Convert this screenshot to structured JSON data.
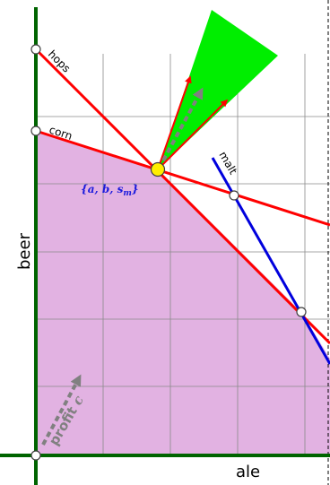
{
  "labels": {
    "hops": "hops",
    "corn": "corn",
    "malt": "malt",
    "vertex_set": "{a, b, s",
    "vertex_set_sub": "m",
    "vertex_set_close": "}",
    "profit": "profit",
    "profit_var": "c",
    "y_axis": "beer",
    "x_axis": "ale"
  },
  "colors": {
    "feasible_region": "#e2b2e2",
    "constraint_line": "#ff0000",
    "malt_line": "#0000dd",
    "axis": "#006400",
    "grid": "#8a8a8a",
    "cone": "#00ee00",
    "optimum_point": "#ffee00",
    "profit_arrow": "#808080",
    "vertex_label": "#1a1add"
  }
}
